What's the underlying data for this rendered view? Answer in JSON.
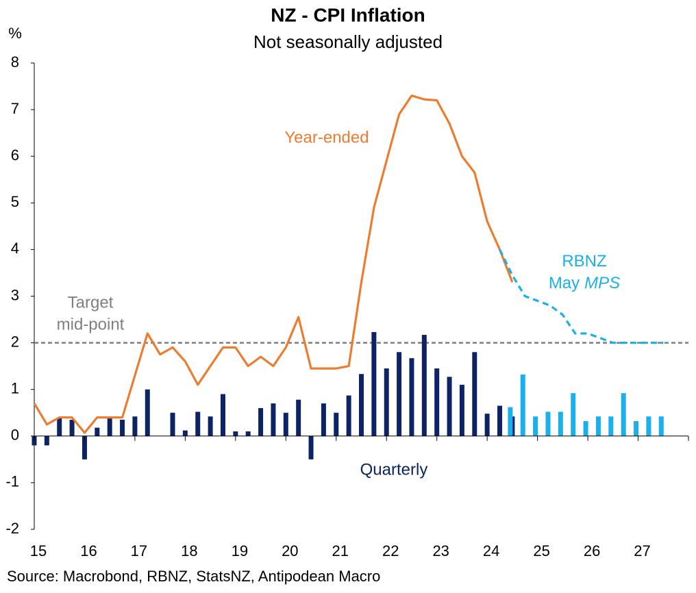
{
  "chart_data": {
    "type": "combo",
    "title": "NZ - CPI Inflation",
    "subtitle": "Not seasonally adjusted",
    "y_unit": "%",
    "source": "Source: Macrobond, RBNZ, StatsNZ, Antipodean Macro",
    "xlim": [
      15,
      28
    ],
    "xticks": [
      15,
      16,
      17,
      18,
      19,
      20,
      21,
      22,
      23,
      24,
      25,
      26,
      27
    ],
    "ylim": [
      -2,
      8
    ],
    "yticks": [
      -2,
      -1,
      0,
      1,
      2,
      3,
      4,
      5,
      6,
      7,
      8
    ],
    "reference_line": {
      "value": 2,
      "color": "#7f7f7f",
      "label_lines": [
        "Target",
        "mid-point"
      ]
    },
    "series": [
      {
        "name": "Quarterly",
        "type": "bar",
        "color": "#0c2466",
        "x": [
          15,
          15.25,
          15.5,
          15.75,
          16,
          16.25,
          16.5,
          16.75,
          17,
          17.25,
          17.5,
          17.75,
          18,
          18.25,
          18.5,
          18.75,
          19,
          19.25,
          19.5,
          19.75,
          20,
          20.25,
          20.5,
          20.75,
          21,
          21.25,
          21.5,
          21.75,
          22,
          22.25,
          22.5,
          22.75,
          23,
          23.25,
          23.5,
          23.75,
          24,
          24.25,
          24.5
        ],
        "values": [
          -0.2,
          -0.2,
          0.4,
          0.35,
          -0.5,
          0.18,
          0.4,
          0.35,
          0.42,
          1.0,
          0,
          0.5,
          0.12,
          0.52,
          0.42,
          0.9,
          0.1,
          0.1,
          0.6,
          0.7,
          0.5,
          0.78,
          -0.5,
          0.7,
          0.5,
          0.87,
          1.33,
          2.23,
          1.45,
          1.8,
          1.67,
          2.17,
          1.45,
          1.27,
          1.1,
          1.8,
          0.48,
          0.65,
          0.42
        ]
      },
      {
        "type": "bar",
        "color": "#1ab0ec",
        "forecast": true,
        "x": [
          24.5,
          24.75,
          25,
          25.25,
          25.5,
          25.75,
          26,
          26.25,
          26.5,
          26.75,
          27,
          27.25,
          27.5
        ],
        "values": [
          0.62,
          1.32,
          0.42,
          0.52,
          0.52,
          0.92,
          0.32,
          0.42,
          0.42,
          0.92,
          0.32,
          0.42,
          0.42
        ]
      },
      {
        "name": "Year-ended",
        "type": "line",
        "color": "#ec7c30",
        "x": [
          15,
          15.25,
          15.5,
          15.75,
          16,
          16.25,
          16.5,
          16.75,
          17,
          17.25,
          17.5,
          17.75,
          18,
          18.25,
          18.5,
          18.75,
          19,
          19.25,
          19.5,
          19.75,
          20,
          20.25,
          20.5,
          20.75,
          21,
          21.25,
          21.5,
          21.75,
          22,
          22.25,
          22.5,
          22.75,
          23,
          23.25,
          23.5,
          23.75,
          24,
          24.25,
          24.5
        ],
        "values": [
          0.7,
          0.25,
          0.4,
          0.4,
          0.07,
          0.4,
          0.4,
          0.4,
          1.3,
          2.2,
          1.75,
          1.9,
          1.6,
          1.1,
          1.5,
          1.9,
          1.9,
          1.5,
          1.7,
          1.5,
          1.9,
          2.55,
          1.45,
          1.45,
          1.45,
          1.5,
          3.3,
          4.9,
          5.9,
          6.9,
          7.3,
          7.22,
          7.2,
          6.7,
          6.0,
          5.65,
          4.6,
          4.0,
          3.3
        ]
      },
      {
        "type": "line",
        "color": "#1ab0ec",
        "dashed": true,
        "x": [
          24.25,
          24.5,
          24.75,
          25,
          25.25,
          25.5,
          25.75,
          26,
          26.25,
          26.5,
          26.75,
          27,
          27.25,
          27.5
        ],
        "values": [
          4.0,
          3.45,
          3.0,
          2.9,
          2.8,
          2.6,
          2.2,
          2.2,
          2.1,
          2.0,
          2.0,
          2.0,
          2.0,
          2.0
        ]
      }
    ],
    "annotations": [
      {
        "lines": [
          [
            "RBNZ"
          ],
          [
            "May",
            "MPS"
          ]
        ],
        "color": "#1ab0ec"
      }
    ]
  }
}
